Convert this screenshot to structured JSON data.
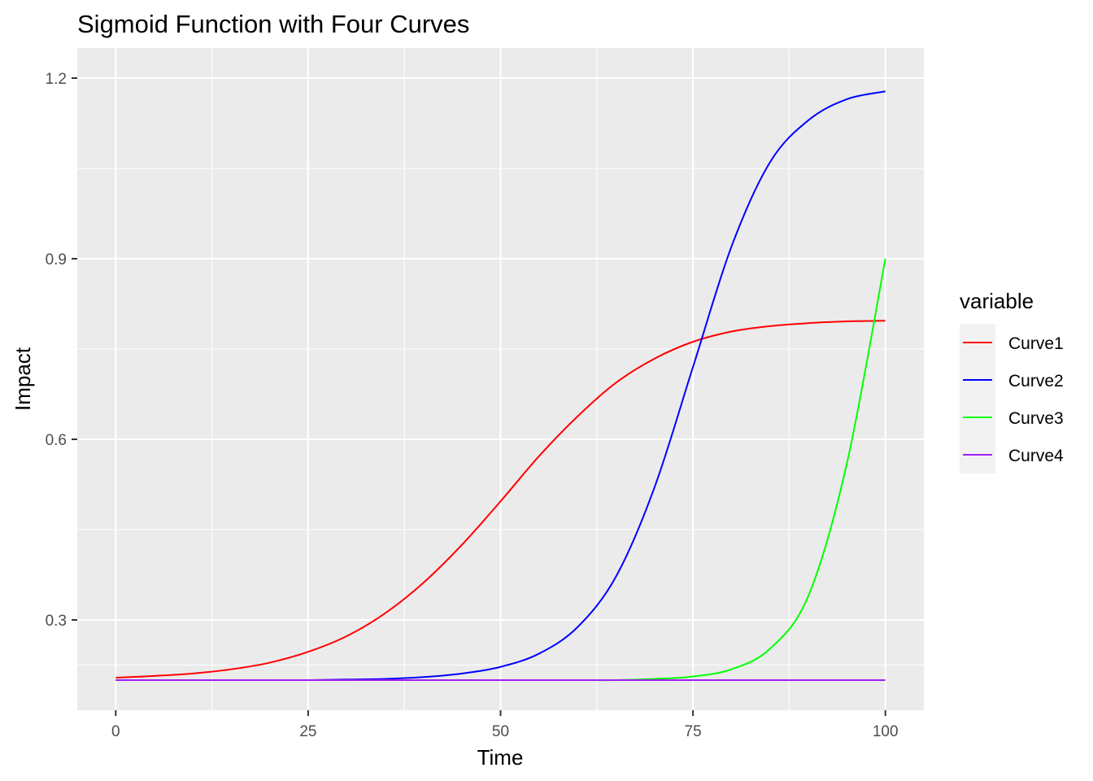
{
  "chart_data": {
    "type": "line",
    "title": "Sigmoid Function with Four Curves",
    "xlabel": "Time",
    "ylabel": "Impact",
    "xlim": [
      -5,
      105
    ],
    "ylim": [
      0.15,
      1.25
    ],
    "x_ticks": [
      0,
      25,
      50,
      75,
      100
    ],
    "x_tick_labels": [
      "0",
      "25",
      "50",
      "75",
      "100"
    ],
    "y_ticks": [
      0.3,
      0.6,
      0.9,
      1.2
    ],
    "y_tick_labels": [
      "0.3",
      "0.6",
      "0.9",
      "1.2"
    ],
    "grid": true,
    "legend": {
      "title": "variable",
      "position": "right"
    },
    "x": [
      0,
      5,
      10,
      15,
      20,
      25,
      30,
      35,
      40,
      45,
      50,
      55,
      60,
      65,
      70,
      75,
      80,
      85,
      90,
      95,
      100
    ],
    "series": [
      {
        "name": "Curve1",
        "color": "#ff0000",
        "values": [
          0.204,
          0.207,
          0.211,
          0.218,
          0.229,
          0.247,
          0.273,
          0.311,
          0.362,
          0.425,
          0.497,
          0.572,
          0.638,
          0.694,
          0.734,
          0.762,
          0.779,
          0.788,
          0.793,
          0.796,
          0.797
        ]
      },
      {
        "name": "Curve2",
        "color": "#0000ff",
        "values": [
          0.2,
          0.2,
          0.2,
          0.2,
          0.2,
          0.2,
          0.201,
          0.202,
          0.205,
          0.211,
          0.222,
          0.244,
          0.288,
          0.372,
          0.52,
          0.72,
          0.92,
          1.06,
          1.13,
          1.165,
          1.178
        ]
      },
      {
        "name": "Curve3",
        "color": "#00ff00",
        "values": [
          0.2,
          0.2,
          0.2,
          0.2,
          0.2,
          0.2,
          0.2,
          0.2,
          0.2,
          0.2,
          0.2,
          0.2,
          0.2,
          0.2,
          0.202,
          0.206,
          0.218,
          0.252,
          0.34,
          0.56,
          0.9
        ]
      },
      {
        "name": "Curve4",
        "color": "#a020f0",
        "values": [
          0.2,
          0.2,
          0.2,
          0.2,
          0.2,
          0.2,
          0.2,
          0.2,
          0.2,
          0.2,
          0.2,
          0.2,
          0.2,
          0.2,
          0.2,
          0.2,
          0.2,
          0.2,
          0.2,
          0.2,
          0.2
        ]
      }
    ]
  }
}
